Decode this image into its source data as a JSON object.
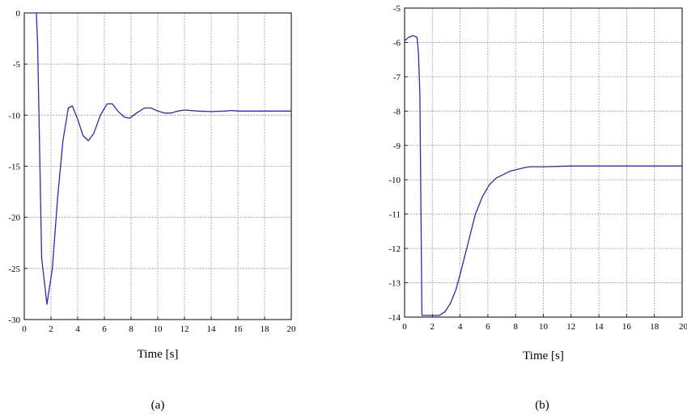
{
  "chart_data": [
    {
      "type": "line",
      "caption": "(a)",
      "xlabel": "Time [s]",
      "ylabel": "",
      "xlim": [
        0,
        20
      ],
      "ylim": [
        -30,
        0
      ],
      "xticks": [
        0,
        2,
        4,
        6,
        8,
        10,
        12,
        14,
        16,
        18,
        20
      ],
      "yticks": [
        0,
        -5,
        -10,
        -15,
        -20,
        -25,
        -30
      ],
      "grid": true,
      "series": [
        {
          "color": "#2b2bb0",
          "x": [
            0,
            0.9,
            1.0,
            1.3,
            1.7,
            2.1,
            2.5,
            2.9,
            3.3,
            3.6,
            4.0,
            4.4,
            4.8,
            5.2,
            5.7,
            6.2,
            6.6,
            7.0,
            7.5,
            7.9,
            8.4,
            9.0,
            9.5,
            10.0,
            10.5,
            11.0,
            11.5,
            12.0,
            13.0,
            14.0,
            15.0,
            15.5,
            16.0,
            17.0,
            18.0,
            19.0,
            20.0
          ],
          "y": [
            0,
            0,
            -3,
            -24,
            -28.5,
            -25,
            -18,
            -12.5,
            -9.3,
            -9.1,
            -10.4,
            -12.0,
            -12.5,
            -11.8,
            -10.0,
            -8.9,
            -8.9,
            -9.6,
            -10.2,
            -10.3,
            -9.8,
            -9.3,
            -9.3,
            -9.6,
            -9.8,
            -9.8,
            -9.6,
            -9.5,
            -9.6,
            -9.65,
            -9.6,
            -9.55,
            -9.6,
            -9.6,
            -9.6,
            -9.6,
            -9.6
          ]
        }
      ]
    },
    {
      "type": "line",
      "caption": "(b)",
      "xlabel": "Time [s]",
      "ylabel": "",
      "xlim": [
        0,
        20
      ],
      "ylim": [
        -14,
        -5
      ],
      "xticks": [
        0,
        2,
        4,
        6,
        8,
        10,
        12,
        14,
        16,
        18,
        20
      ],
      "xtick_labels": [
        "0",
        "2",
        "4",
        "6",
        "8",
        "10",
        "12",
        "14",
        "16",
        "18",
        "20"
      ],
      "yticks": [
        -5,
        -6,
        -7,
        -8,
        -9,
        -10,
        -11,
        -12,
        -13,
        -14
      ],
      "grid": true,
      "series": [
        {
          "color": "#2b2bb0",
          "x": [
            0,
            0.3,
            0.6,
            0.9,
            1.0,
            1.1,
            1.25,
            1.6,
            2.0,
            2.5,
            2.9,
            3.3,
            3.7,
            4.1,
            4.6,
            5.1,
            5.6,
            6.1,
            6.6,
            7.1,
            7.6,
            8.1,
            8.6,
            9.0,
            10.0,
            11.0,
            12.0,
            14.0,
            16.0,
            18.0,
            20.0
          ],
          "y": [
            -5.95,
            -5.85,
            -5.8,
            -5.85,
            -6.3,
            -7.5,
            -13.95,
            -13.95,
            -13.95,
            -13.95,
            -13.85,
            -13.6,
            -13.2,
            -12.6,
            -11.8,
            -11.0,
            -10.5,
            -10.15,
            -9.95,
            -9.85,
            -9.75,
            -9.7,
            -9.65,
            -9.62,
            -9.62,
            -9.61,
            -9.6,
            -9.6,
            -9.6,
            -9.6,
            -9.6
          ]
        }
      ]
    }
  ]
}
